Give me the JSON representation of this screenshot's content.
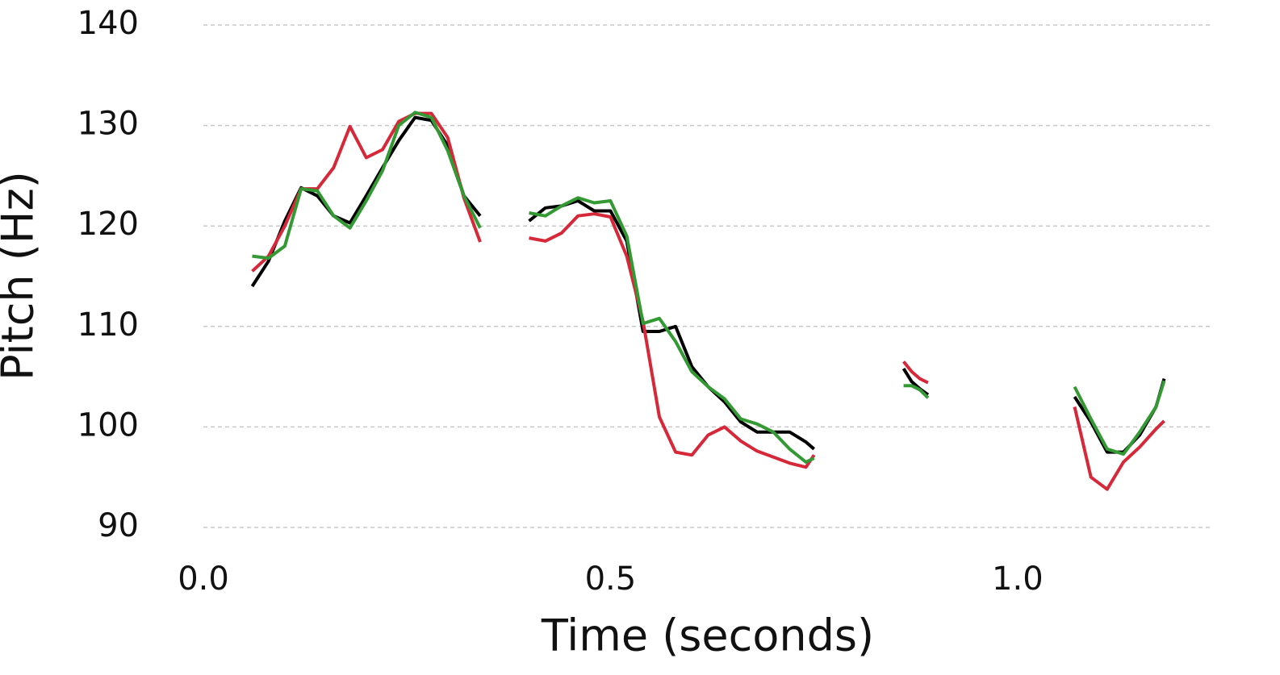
{
  "chart_data": {
    "type": "line",
    "x_label": "Time (seconds)",
    "y_label": "Pitch (Hz)",
    "x": [
      0.06,
      0.08,
      0.1,
      0.12,
      0.14,
      0.16,
      0.18,
      0.2,
      0.22,
      0.24,
      0.26,
      0.28,
      0.3,
      0.32,
      0.34,
      0.37,
      0.4,
      0.42,
      0.44,
      0.46,
      0.48,
      0.5,
      0.52,
      0.54,
      0.56,
      0.58,
      0.6,
      0.62,
      0.64,
      0.66,
      0.68,
      0.7,
      0.72,
      0.74,
      0.75,
      0.8,
      0.86,
      0.87,
      0.88,
      0.89,
      1.0,
      1.07,
      1.09,
      1.11,
      1.13,
      1.15,
      1.17,
      1.18
    ],
    "series": [
      {
        "name": "black",
        "color": "#000000",
        "values": [
          114,
          116.5,
          120.5,
          123.8,
          123,
          121,
          120.3,
          123,
          125.8,
          128.5,
          130.8,
          130.5,
          128,
          123,
          121,
          null,
          120.5,
          121.8,
          122,
          122.5,
          121.5,
          121.5,
          118.5,
          109.5,
          109.5,
          110,
          106,
          104,
          102.5,
          100.5,
          99.5,
          99.5,
          99.5,
          98.5,
          97.8,
          null,
          105.8,
          104.5,
          103.8,
          103.2,
          null,
          103,
          100.5,
          97.5,
          97.5,
          99.2,
          102,
          104.8
        ]
      },
      {
        "name": "red",
        "color": "#d62839",
        "values": [
          115.5,
          117,
          120,
          123.7,
          123.7,
          125.8,
          129.9,
          126.8,
          127.6,
          130.4,
          131.2,
          131.2,
          128.8,
          122.8,
          118.4,
          null,
          118.8,
          118.5,
          119.3,
          121,
          121.2,
          120.9,
          117,
          110.5,
          101,
          97.5,
          97.2,
          99.2,
          100,
          98.6,
          97.6,
          97,
          96.4,
          96,
          97.2,
          null,
          106.5,
          105.5,
          104.8,
          104.4,
          null,
          102,
          95,
          93.8,
          96.5,
          98,
          99.8,
          100.6
        ]
      },
      {
        "name": "green",
        "color": "#339933",
        "values": [
          117,
          116.8,
          118,
          123.7,
          123.5,
          121,
          119.8,
          122.5,
          125.5,
          130,
          131.3,
          130.8,
          127.5,
          123,
          119.8,
          null,
          121.3,
          121,
          122,
          122.8,
          122.3,
          122.5,
          119,
          110.3,
          110.8,
          108.5,
          105.5,
          104,
          102.8,
          100.8,
          100.3,
          99.5,
          97.8,
          96.5,
          96.9,
          null,
          104.1,
          104.1,
          103.7,
          102.9,
          null,
          104,
          100.8,
          97.8,
          97.3,
          99.5,
          102,
          104.6
        ]
      }
    ],
    "xlim": [
      0,
      1.24
    ],
    "ylim": [
      89,
      141
    ],
    "xticks": [
      {
        "value": 0,
        "label": "0.0"
      },
      {
        "value": 0.5,
        "label": "0.5"
      },
      {
        "value": 1,
        "label": "1.0"
      }
    ],
    "yticks": [
      90,
      100,
      110,
      120,
      130,
      140
    ],
    "grid": true
  }
}
